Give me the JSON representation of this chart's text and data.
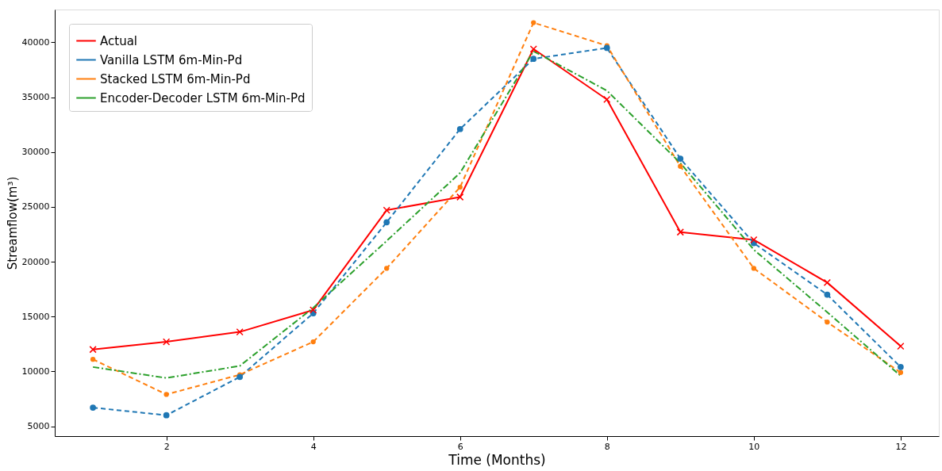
{
  "chart_data": {
    "type": "line",
    "xlabel": "Time (Months)",
    "ylabel": "Streamflow(m³)",
    "x": [
      1,
      2,
      3,
      4,
      5,
      6,
      7,
      8,
      9,
      10,
      11,
      12
    ],
    "xlim": [
      0.48,
      12.52
    ],
    "xticks": [
      2,
      4,
      6,
      8,
      10,
      12
    ],
    "ylim": [
      4100,
      43000
    ],
    "yticks": [
      5000,
      10000,
      15000,
      20000,
      25000,
      30000,
      35000,
      40000
    ],
    "grid": false,
    "legend": "top left",
    "series": [
      {
        "name": "Actual",
        "color": "#ff0000",
        "marker": "cross",
        "line_style": "solid",
        "values": [
          12000,
          12700,
          13600,
          15600,
          24700,
          25900,
          39400,
          34800,
          22700,
          22000,
          18100,
          12300
        ]
      },
      {
        "name": "Vanilla LSTM 6m-Min-Pd",
        "color": "#1f77b4",
        "marker": "circle",
        "line_style": "dashed",
        "values": [
          6700,
          6000,
          9500,
          15300,
          23600,
          32100,
          38500,
          39500,
          29400,
          21700,
          17000,
          10400
        ]
      },
      {
        "name": "Stacked  LSTM 6m-Min-Pd",
        "color": "#ff7f0e",
        "marker": "circle",
        "line_style": "dashed",
        "values": [
          11100,
          7900,
          9700,
          12700,
          19400,
          26800,
          41800,
          39700,
          28700,
          19400,
          14500,
          9900
        ]
      },
      {
        "name": "Encoder-Decoder LSTM 6m-Min-Pd",
        "color": "#2ca02c",
        "marker": "none",
        "line_style": "dashdot",
        "values": [
          10400,
          9400,
          10500,
          15800,
          21900,
          28100,
          39200,
          35600,
          29000,
          21100,
          15400,
          9600
        ]
      }
    ]
  }
}
